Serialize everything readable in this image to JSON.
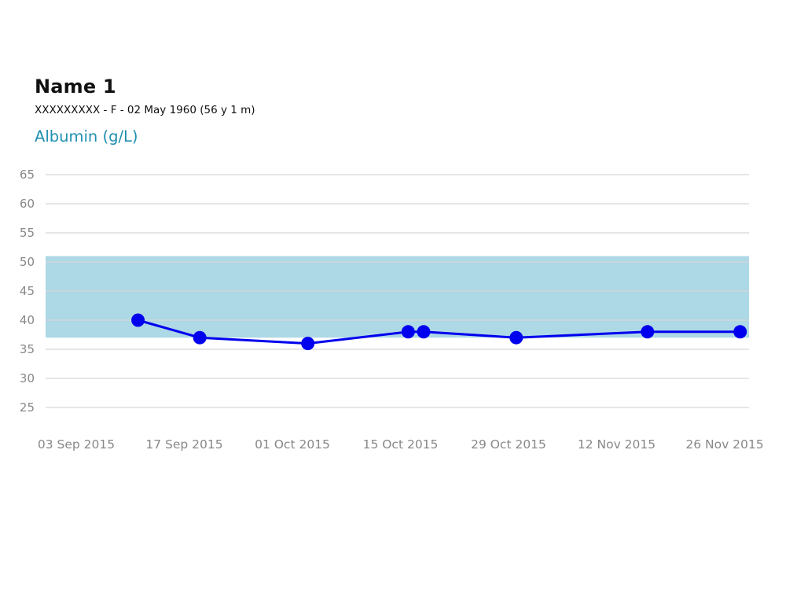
{
  "patient": {
    "name": "Name 1",
    "details": "XXXXXXXXX - F - 02 May 1960 (56 y 1 m)"
  },
  "chart_data": {
    "type": "line",
    "title": "Albumin (g/L)",
    "xlabel": "",
    "ylabel": "",
    "ylim": [
      25,
      65
    ],
    "y_ticks": [
      25,
      30,
      35,
      40,
      45,
      50,
      55,
      60,
      65
    ],
    "x_tick_labels": [
      "03 Sep 2015",
      "17 Sep 2015",
      "01 Oct 2015",
      "15 Oct 2015",
      "29 Oct 2015",
      "12 Nov 2015",
      "26 Nov 2015"
    ],
    "grid": true,
    "reference_range": {
      "low": 37,
      "high": 51
    },
    "series": [
      {
        "x": [
          "2015-09-11",
          "2015-09-19",
          "2015-10-03",
          "2015-10-16",
          "2015-10-18",
          "2015-10-30",
          "2015-11-16",
          "2015-11-28"
        ],
        "values": [
          40,
          37,
          36,
          38,
          38,
          37,
          38,
          38
        ]
      }
    ],
    "colors": {
      "line": "#0000ee",
      "marker": "#0000ee",
      "reference_band": "#add8e6",
      "grid": "#d6d6d6",
      "title": "#1f8fb0"
    }
  }
}
